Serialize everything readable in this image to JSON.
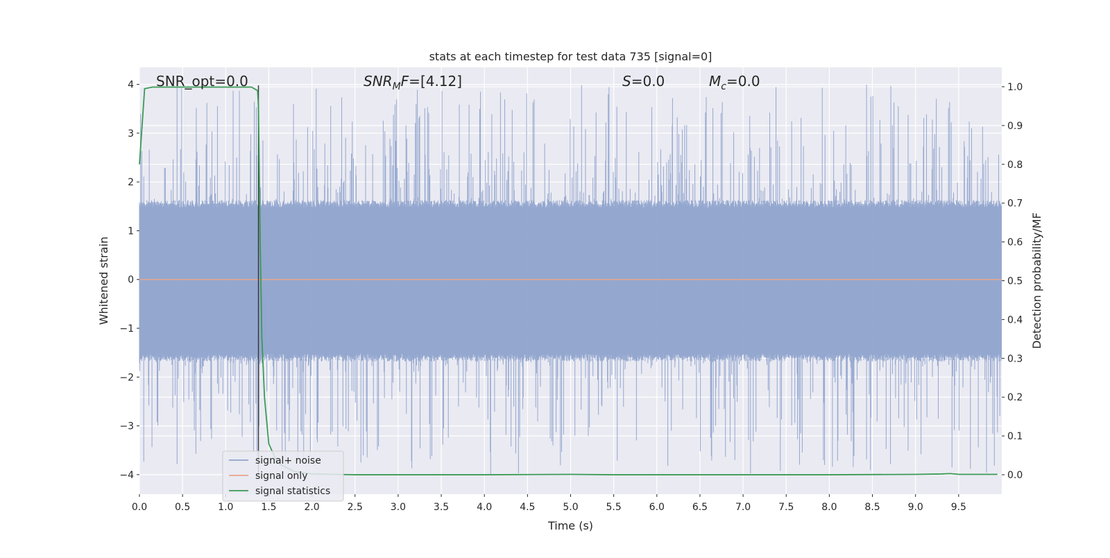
{
  "chart_data": {
    "type": "line",
    "title": "stats at each timestep for test data 735 [signal=0]",
    "xlabel": "Time (s)",
    "ylabel_left": "Whitened strain",
    "ylabel_right": "Detection probability/MF",
    "xlim": [
      0.0,
      10.0
    ],
    "ylim_left": [
      -4.4,
      4.35
    ],
    "ylim_right": [
      -0.05,
      1.05
    ],
    "x_ticks": [
      0.0,
      0.5,
      1.0,
      1.5,
      2.0,
      2.5,
      3.0,
      3.5,
      4.0,
      4.5,
      5.0,
      5.5,
      6.0,
      6.5,
      7.0,
      7.5,
      8.0,
      8.5,
      9.0,
      9.5
    ],
    "x_tick_labels": [
      "0.0",
      "0.5",
      "1.0",
      "1.5",
      "2.0",
      "2.5",
      "3.0",
      "3.5",
      "4.0",
      "4.5",
      "5.0",
      "5.5",
      "6.0",
      "6.5",
      "7.0",
      "7.5",
      "8.0",
      "8.5",
      "9.0",
      "9.5"
    ],
    "y_left_ticks": [
      -4,
      -3,
      -2,
      -1,
      0,
      1,
      2,
      3,
      4
    ],
    "y_left_tick_labels": [
      "−4",
      "−3",
      "−2",
      "−1",
      "0",
      "1",
      "2",
      "3",
      "4"
    ],
    "y_right_ticks": [
      0.0,
      0.1,
      0.2,
      0.3,
      0.4,
      0.5,
      0.6,
      0.7,
      0.8,
      0.9,
      1.0
    ],
    "y_right_tick_labels": [
      "0.0",
      "0.1",
      "0.2",
      "0.3",
      "0.4",
      "0.5",
      "0.6",
      "0.7",
      "0.8",
      "0.9",
      "1.0"
    ],
    "grid": true,
    "legend_position": "lower-left",
    "annotations": {
      "snr_opt": "SNR_opt=0.0",
      "snr_mf": "[4.12]",
      "s_value": "0.0",
      "mc_value": "0.0"
    },
    "vertical_marker_x": 1.38,
    "series": [
      {
        "name": "signal+ noise",
        "axis": "left",
        "color": "#8fa3cc",
        "noise_band": {
          "envelope_low": -1.6,
          "envelope_high": 1.55,
          "peak_max": 4.0,
          "peak_min": -4.0
        }
      },
      {
        "name": "signal only",
        "axis": "left",
        "color": "#e8a48c",
        "x": [
          0.0,
          10.0
        ],
        "y": [
          0.0,
          0.0
        ]
      },
      {
        "name": "signal statistics",
        "axis": "right",
        "color": "#3a9a55",
        "x": [
          0.0,
          0.06,
          0.15,
          0.5,
          1.0,
          1.3,
          1.37,
          1.38,
          1.4,
          1.42,
          1.45,
          1.5,
          1.6,
          1.8,
          2.0,
          2.5,
          3.0,
          4.0,
          5.0,
          5.5,
          6.0,
          7.0,
          8.0,
          9.0,
          9.3,
          9.4,
          9.5,
          9.95
        ],
        "y": [
          0.8,
          0.995,
          0.999,
          0.999,
          0.999,
          0.999,
          0.99,
          0.95,
          0.6,
          0.35,
          0.2,
          0.08,
          0.03,
          0.008,
          0.002,
          0.0,
          0.0,
          0.0,
          0.001,
          0.0,
          0.0,
          0.0,
          0.0,
          0.001,
          0.002,
          0.003,
          0.001,
          0.001
        ]
      }
    ]
  }
}
